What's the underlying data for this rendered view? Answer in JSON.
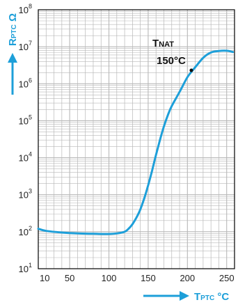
{
  "chart_data": {
    "type": "line",
    "x_axis": {
      "label_main": "T",
      "label_sub": "PTC",
      "label_unit": " °C",
      "ticks": [
        10,
        50,
        100,
        150,
        200,
        250
      ],
      "range": [
        10,
        260
      ]
    },
    "y_axis": {
      "label_main": "R",
      "label_sub": "PTC",
      "label_unit": " Ω",
      "scale": "log",
      "ticks": [
        {
          "base": "10",
          "exp": "1",
          "value": 10
        },
        {
          "base": "10",
          "exp": "2",
          "value": 100
        },
        {
          "base": "10",
          "exp": "3",
          "value": 1000
        },
        {
          "base": "10",
          "exp": "4",
          "value": 10000
        },
        {
          "base": "10",
          "exp": "5",
          "value": 100000
        },
        {
          "base": "10",
          "exp": "6",
          "value": 1000000
        },
        {
          "base": "10",
          "exp": "7",
          "value": 10000000
        },
        {
          "base": "10",
          "exp": "8",
          "value": 100000000
        }
      ],
      "range": [
        10,
        100000000
      ]
    },
    "grid": true,
    "series": [
      {
        "color": "#1d9fd9",
        "x": [
          10,
          20,
          40,
          60,
          80,
          100,
          110,
          120,
          125,
          130,
          135,
          140,
          145,
          150,
          155,
          160,
          165,
          170,
          175,
          180,
          190,
          200,
          210,
          220,
          230,
          240,
          250,
          258
        ],
        "y": [
          120,
          105,
          95,
          90,
          88,
          87,
          90,
          100,
          120,
          160,
          240,
          400,
          800,
          1800,
          4500,
          12000,
          30000,
          70000,
          140000,
          250000,
          600000,
          1500000,
          2800000,
          5000000,
          7000000,
          7700000,
          7800000,
          7200000
        ]
      }
    ],
    "annotation": {
      "label_main": "T",
      "label_sub": "NAT",
      "value": "150°C",
      "point": {
        "x": 205,
        "y": 2300000
      }
    }
  },
  "colors": {
    "accent": "#1d9fd9",
    "grid": "#b8b8b8",
    "axis": "#000000"
  }
}
